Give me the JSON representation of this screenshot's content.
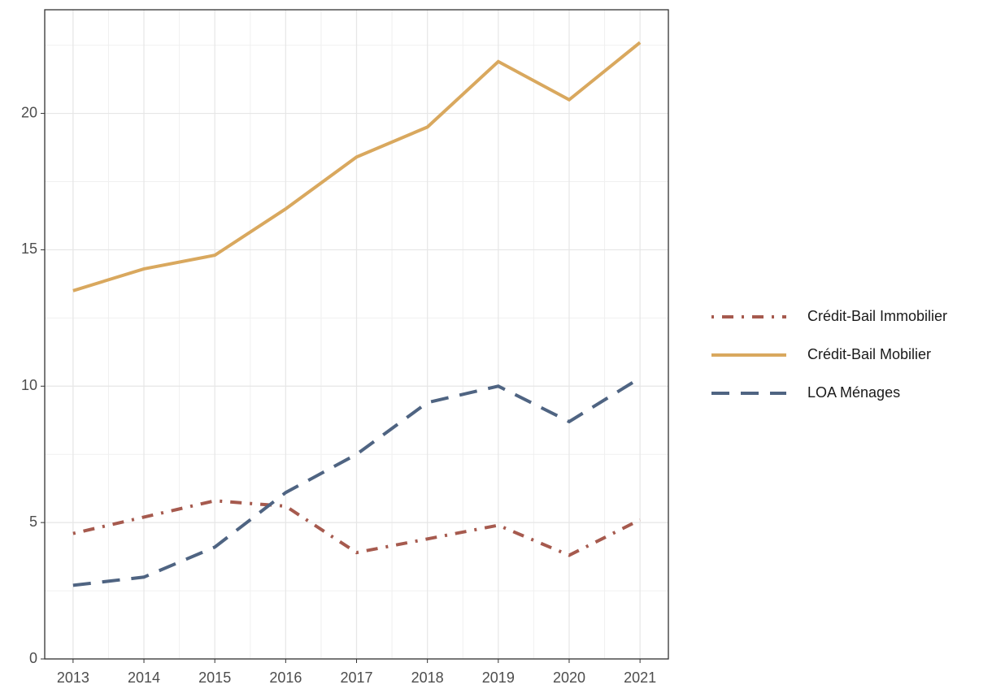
{
  "chart_data": {
    "type": "line",
    "x": [
      2013,
      2014,
      2015,
      2016,
      2017,
      2018,
      2019,
      2020,
      2021
    ],
    "series": [
      {
        "name": "Crédit-Bail Immobilier",
        "color": "#a65a4e",
        "dash": "dotdash",
        "values": [
          4.6,
          5.2,
          5.8,
          5.6,
          3.9,
          4.4,
          4.9,
          3.8,
          5.1
        ]
      },
      {
        "name": "Crédit-Bail Mobilier",
        "color": "#d9a85e",
        "dash": "solid",
        "values": [
          13.5,
          14.3,
          14.8,
          16.5,
          18.4,
          19.5,
          21.9,
          20.5,
          22.6
        ]
      },
      {
        "name": "LOA Ménages",
        "color": "#4f6482",
        "dash": "longdash",
        "values": [
          2.7,
          3.0,
          4.1,
          6.1,
          7.5,
          9.4,
          10.0,
          8.7,
          10.3
        ]
      }
    ],
    "xlim": [
      2012.6,
      2021.4
    ],
    "xticks": [
      2013,
      2014,
      2015,
      2016,
      2017,
      2018,
      2019,
      2020,
      2021
    ],
    "ylim": [
      0,
      23.8
    ],
    "yticks": [
      0,
      5,
      10,
      15,
      20
    ],
    "grid": true,
    "legend": "right"
  }
}
